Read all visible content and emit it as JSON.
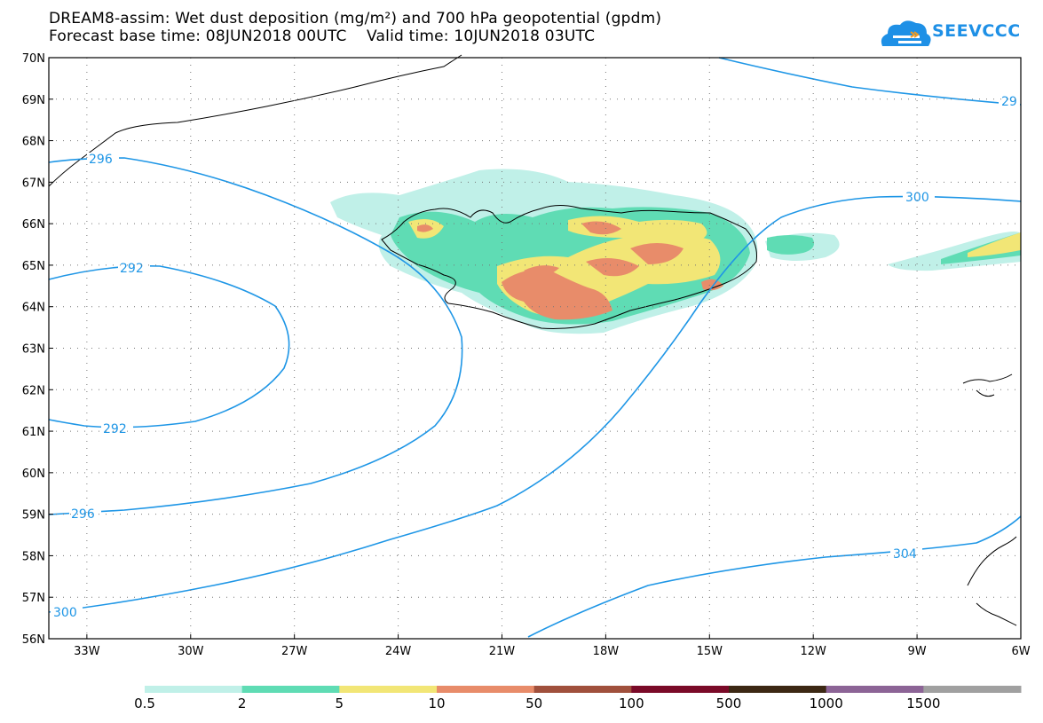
{
  "title": {
    "line1": "DREAM8-assim: Wet dust deposition (mg/m²) and 700 hPa geopotential (gpdm)",
    "line2": "Forecast base time: 08JUN2018 00UTC    Valid time: 10JUN2018 03UTC"
  },
  "logo": {
    "text": "SEEVCCC",
    "icon": "cloud-icon",
    "color": "#1e90e6"
  },
  "map": {
    "lat_labels": [
      "70N",
      "69N",
      "68N",
      "67N",
      "66N",
      "65N",
      "64N",
      "63N",
      "62N",
      "61N",
      "60N",
      "59N",
      "58N",
      "57N",
      "56N"
    ],
    "lon_labels": [
      "33W",
      "30W",
      "27W",
      "24W",
      "21W",
      "18W",
      "15W",
      "12W",
      "9W",
      "6W"
    ],
    "contour_labels": [
      "296",
      "292",
      "292",
      "296",
      "300",
      "300",
      "304",
      "29"
    ],
    "contour_color": "#1e96e6"
  },
  "legend": {
    "colors": [
      "#c0f0e8",
      "#5fdcb4",
      "#f2e676",
      "#e88c6a",
      "#a0503c",
      "#7a0a28",
      "#3c2814",
      "#8c6496",
      "#a0a0a0"
    ],
    "labels": [
      "0.5",
      "2",
      "5",
      "10",
      "50",
      "100",
      "500",
      "1000",
      "1500"
    ]
  }
}
